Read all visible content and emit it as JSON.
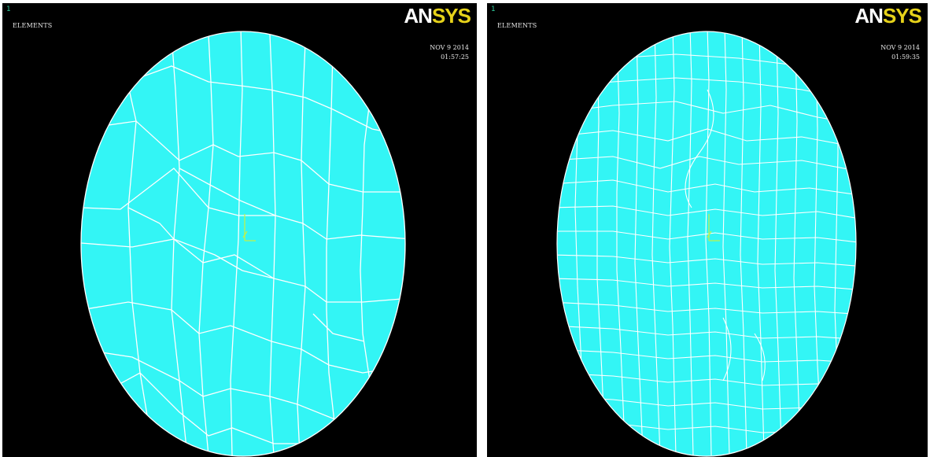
{
  "panels": [
    {
      "window_number": "1",
      "label": "ELEMENTS",
      "logo_left": "AN",
      "logo_right": "SYS",
      "date": "NOV  9 2014",
      "time": "01:57:25"
    },
    {
      "window_number": "1",
      "label": "ELEMENTS",
      "logo_left": "AN",
      "logo_right": "SYS",
      "date": "NOV  9 2014",
      "time": "01:59:35"
    }
  ],
  "colors": {
    "background": "#000000",
    "mesh_fill": "#33f5f5",
    "mesh_lines": "#ffffff",
    "logo_accent": "#e6d21a",
    "triad": "#c8f040"
  }
}
